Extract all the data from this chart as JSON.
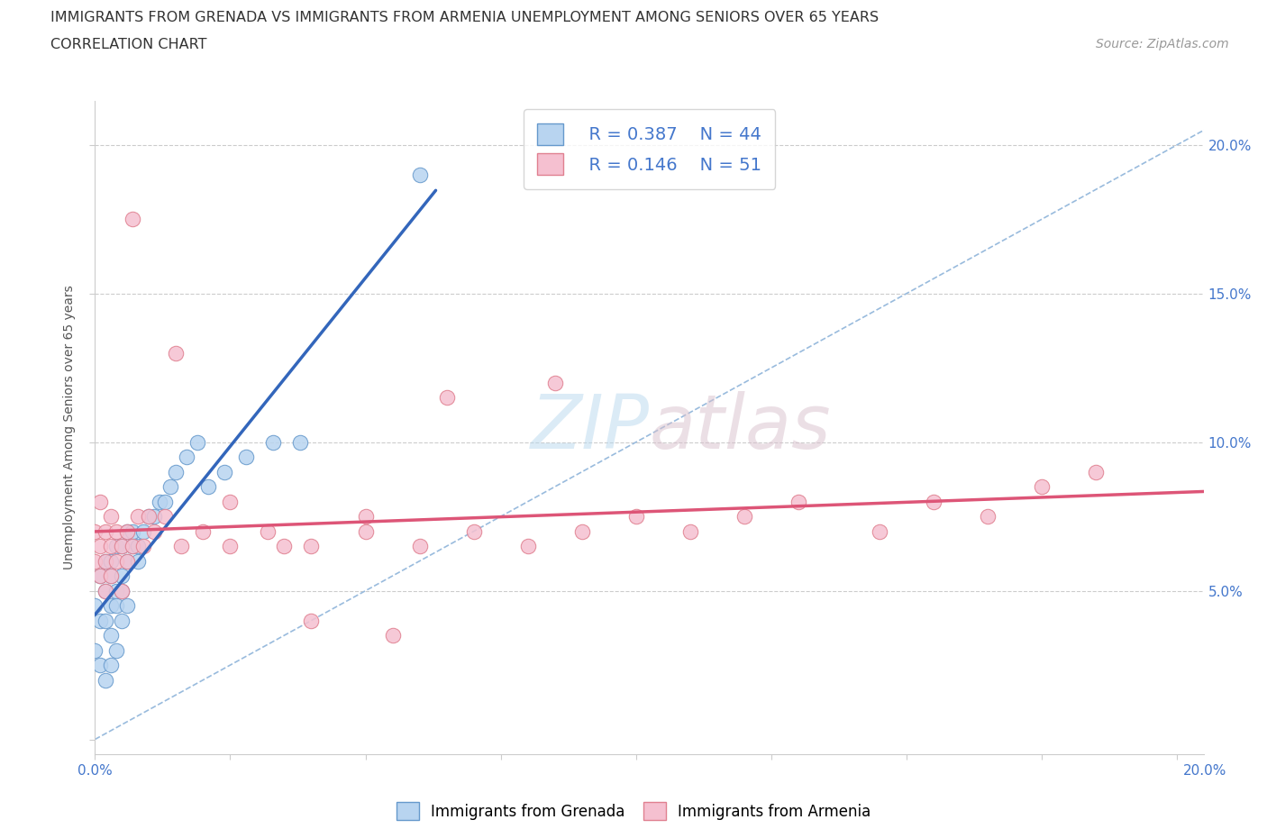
{
  "title_line1": "IMMIGRANTS FROM GRENADA VS IMMIGRANTS FROM ARMENIA UNEMPLOYMENT AMONG SENIORS OVER 65 YEARS",
  "title_line2": "CORRELATION CHART",
  "source_text": "Source: ZipAtlas.com",
  "ylabel": "Unemployment Among Seniors over 65 years",
  "watermark_left": "ZIP",
  "watermark_right": "atlas",
  "legend_r1": "R = 0.387",
  "legend_n1": "N = 44",
  "legend_r2": "R = 0.146",
  "legend_n2": "N = 51",
  "color_grenada_face": "#b8d4f0",
  "color_grenada_edge": "#6699cc",
  "color_armenia_face": "#f5c0d0",
  "color_armenia_edge": "#e08090",
  "color_line_grenada": "#3366bb",
  "color_line_armenia": "#dd5577",
  "color_diag": "#99bbdd",
  "color_axis_blue": "#4477cc",
  "right_ytick_labels": [
    "5.0%",
    "10.0%",
    "15.0%",
    "20.0%"
  ],
  "right_ytick_values": [
    0.05,
    0.1,
    0.15,
    0.2
  ],
  "xlim": [
    0.0,
    0.205
  ],
  "ylim": [
    -0.005,
    0.215
  ],
  "grenada_x": [
    0.0,
    0.0,
    0.001,
    0.001,
    0.001,
    0.002,
    0.002,
    0.002,
    0.002,
    0.003,
    0.003,
    0.003,
    0.003,
    0.003,
    0.004,
    0.004,
    0.004,
    0.004,
    0.005,
    0.005,
    0.005,
    0.005,
    0.006,
    0.006,
    0.006,
    0.007,
    0.007,
    0.008,
    0.008,
    0.009,
    0.01,
    0.011,
    0.012,
    0.013,
    0.014,
    0.015,
    0.017,
    0.019,
    0.021,
    0.024,
    0.028,
    0.033,
    0.038,
    0.06
  ],
  "grenada_y": [
    0.045,
    0.03,
    0.055,
    0.04,
    0.025,
    0.05,
    0.04,
    0.06,
    0.02,
    0.055,
    0.045,
    0.06,
    0.035,
    0.025,
    0.05,
    0.045,
    0.065,
    0.03,
    0.055,
    0.05,
    0.065,
    0.04,
    0.06,
    0.07,
    0.045,
    0.065,
    0.07,
    0.06,
    0.065,
    0.07,
    0.075,
    0.075,
    0.08,
    0.08,
    0.085,
    0.09,
    0.095,
    0.1,
    0.085,
    0.09,
    0.095,
    0.1,
    0.1,
    0.19
  ],
  "armenia_x": [
    0.0,
    0.0,
    0.001,
    0.001,
    0.001,
    0.002,
    0.002,
    0.002,
    0.003,
    0.003,
    0.003,
    0.004,
    0.004,
    0.005,
    0.005,
    0.006,
    0.006,
    0.007,
    0.008,
    0.009,
    0.01,
    0.011,
    0.013,
    0.016,
    0.02,
    0.025,
    0.032,
    0.04,
    0.05,
    0.06,
    0.07,
    0.08,
    0.09,
    0.1,
    0.11,
    0.12,
    0.13,
    0.145,
    0.155,
    0.165,
    0.175,
    0.185,
    0.035,
    0.05,
    0.065,
    0.085,
    0.015,
    0.025,
    0.04,
    0.055,
    0.007
  ],
  "armenia_y": [
    0.06,
    0.07,
    0.065,
    0.055,
    0.08,
    0.06,
    0.07,
    0.05,
    0.065,
    0.055,
    0.075,
    0.06,
    0.07,
    0.065,
    0.05,
    0.07,
    0.06,
    0.065,
    0.075,
    0.065,
    0.075,
    0.07,
    0.075,
    0.065,
    0.07,
    0.065,
    0.07,
    0.065,
    0.07,
    0.065,
    0.07,
    0.065,
    0.07,
    0.075,
    0.07,
    0.075,
    0.08,
    0.07,
    0.08,
    0.075,
    0.085,
    0.09,
    0.065,
    0.075,
    0.115,
    0.12,
    0.13,
    0.08,
    0.04,
    0.035,
    0.175
  ],
  "title_fontsize": 11.5,
  "axis_label_fontsize": 10,
  "tick_fontsize": 11,
  "legend_fontsize": 14,
  "source_fontsize": 10
}
